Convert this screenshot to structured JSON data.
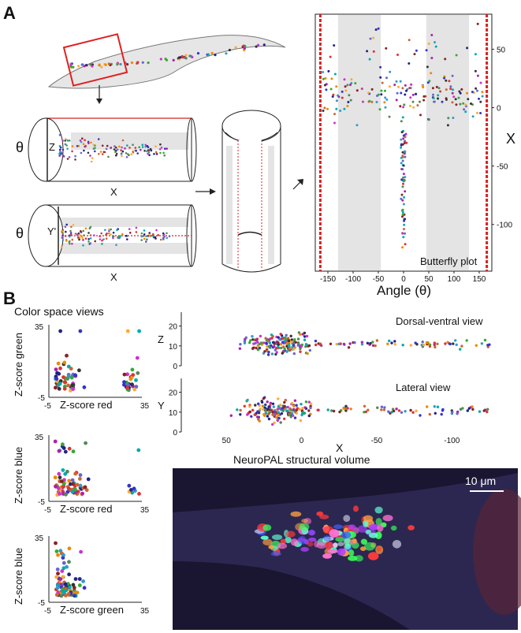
{
  "panels": {
    "a": "A",
    "b": "B"
  },
  "panel_a": {
    "cyl_top_theta": "θ",
    "cyl_top_axis": "Z",
    "cyl_top_x": "X",
    "cyl_bot_theta": "θ",
    "cyl_bot_axis": "Y'",
    "cyl_bot_x": "X"
  },
  "colors": {
    "red_box": "#e02020",
    "band": "#e4e4e4",
    "dashed": "#d82020"
  },
  "chart_data": [
    {
      "type": "scatter",
      "title": "Butterfly plot",
      "xlabel": "Angle (θ)",
      "ylabel": "X",
      "xticks": [
        "-150",
        "-100",
        "-50",
        "0",
        "50",
        "100",
        "150"
      ],
      "yticks": [
        "50",
        "0",
        "-50",
        "-100"
      ],
      "xlim": [
        -175,
        175
      ],
      "ylim": [
        -140,
        80
      ],
      "shaded_bands": [
        [
          -130,
          -45
        ],
        [
          45,
          130
        ]
      ],
      "dashed_bounds": [
        -165,
        165
      ]
    },
    {
      "type": "scatter",
      "title": "Color space views",
      "panels": [
        {
          "xlabel": "Z-score red",
          "ylabel": "Z-score green",
          "xticks": [
            "-5",
            "35"
          ],
          "yticks": [
            "35",
            "-5"
          ]
        },
        {
          "xlabel": "Z-score red",
          "ylabel": "Z-score blue",
          "xticks": [
            "-5",
            "35"
          ],
          "yticks": [
            "35",
            "-5"
          ]
        },
        {
          "xlabel": "Z-score green",
          "ylabel": "Z-score blue",
          "xticks": [
            "-5",
            "35"
          ],
          "yticks": [
            "35",
            "-5"
          ]
        }
      ]
    },
    {
      "type": "scatter",
      "xlabel": "X",
      "xticks": [
        "50",
        "0",
        "-50",
        "-100"
      ],
      "xlim": [
        80,
        -135
      ],
      "panels": [
        {
          "title": "Dorsal-ventral view",
          "ylabel": "Z",
          "yticks": [
            "20",
            "10",
            "0"
          ],
          "ylim": [
            0,
            27
          ]
        },
        {
          "title": "Lateral view",
          "ylabel": "Y",
          "yticks": [
            "20",
            "10",
            "0"
          ],
          "ylim": [
            0,
            27
          ]
        }
      ]
    }
  ],
  "image_panel": {
    "title": "NeuroPAL structural volume",
    "scalebar": "10 μm"
  }
}
